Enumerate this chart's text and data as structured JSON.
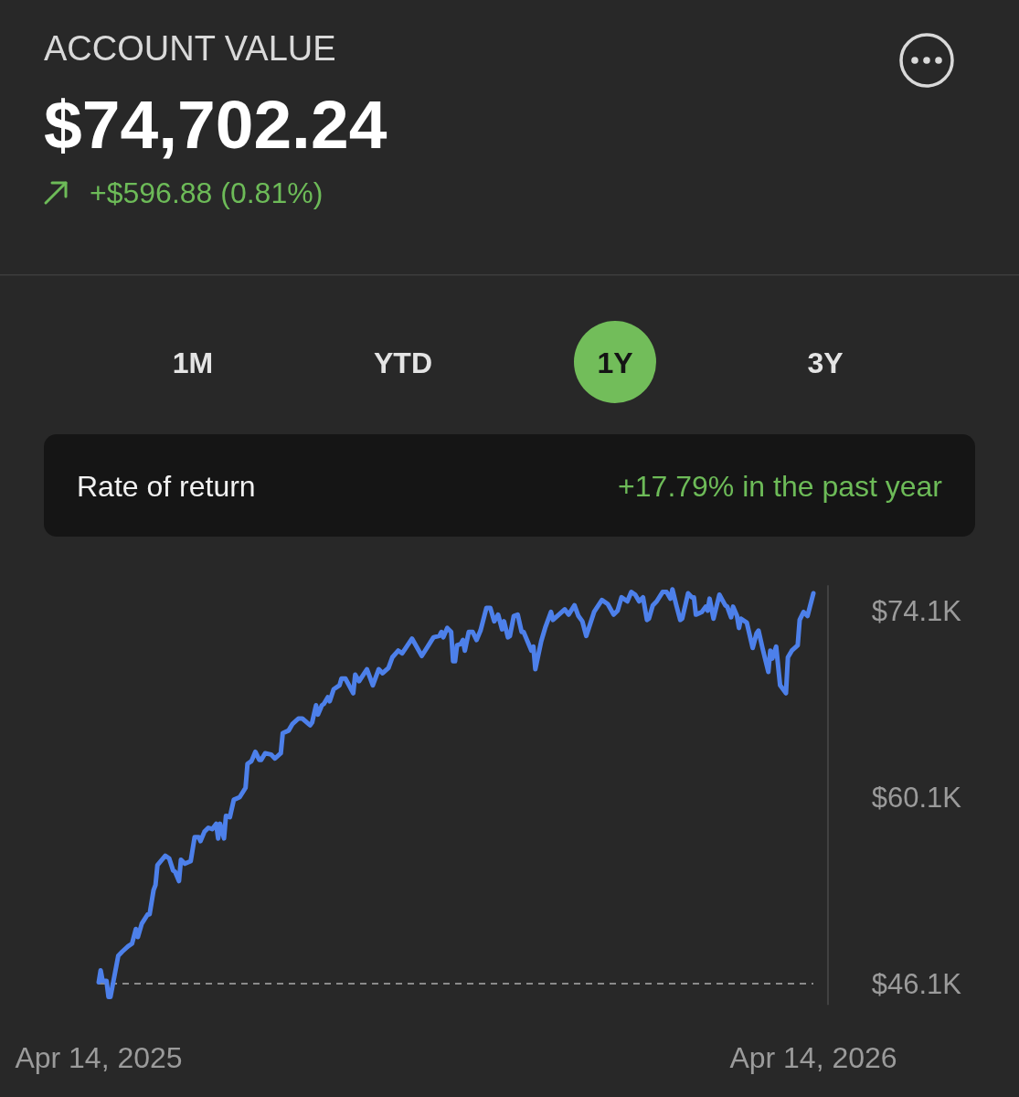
{
  "chart_data": {
    "type": "line",
    "title": "ACCOUNT VALUE",
    "subtitle": "$74,702.24",
    "annotations": [
      "+$596.88 (0.81%)",
      "1M",
      "YTD",
      "1Y",
      "3Y",
      "Rate of return",
      "+17.79% in the past year"
    ],
    "x": [
      "2025-04-14",
      "2025-04-15",
      "2025-04-16",
      "2025-04-18",
      "2025-04-19",
      "2025-04-20",
      "2025-04-24",
      "2025-04-26",
      "2025-04-29",
      "2025-05-01",
      "2025-05-03",
      "2025-05-04",
      "2025-05-06",
      "2025-05-09",
      "2025-05-10",
      "2025-05-12",
      "2025-05-13",
      "2025-05-14",
      "2025-05-18",
      "2025-05-20",
      "2025-05-22",
      "2025-05-23",
      "2025-05-25",
      "2025-05-26",
      "2025-05-28",
      "2025-05-31",
      "2025-06-02",
      "2025-06-04",
      "2025-06-05",
      "2025-06-07",
      "2025-06-09",
      "2025-06-11",
      "2025-06-13",
      "2025-06-14",
      "2025-06-15",
      "2025-06-17",
      "2025-06-18",
      "2025-06-20",
      "2025-06-22",
      "2025-06-25",
      "2025-06-28",
      "2025-06-29",
      "2025-07-01",
      "2025-07-03",
      "2025-07-05",
      "2025-07-06",
      "2025-07-08",
      "2025-07-11",
      "2025-07-13",
      "2025-07-16",
      "2025-07-17",
      "2025-07-20",
      "2025-07-22",
      "2025-07-25",
      "2025-07-27",
      "2025-07-31",
      "2025-08-01",
      "2025-08-03",
      "2025-08-04",
      "2025-08-06",
      "2025-08-07",
      "2025-08-09",
      "2025-08-10",
      "2025-08-12",
      "2025-08-15",
      "2025-08-16",
      "2025-08-18",
      "2025-08-22",
      "2025-08-23",
      "2025-08-25",
      "2025-08-29",
      "2025-09-01",
      "2025-09-04",
      "2025-09-06",
      "2025-09-09",
      "2025-09-11",
      "2025-09-14",
      "2025-09-16",
      "2025-09-21",
      "2025-09-26",
      "2025-09-29",
      "2025-10-02",
      "2025-10-05",
      "2025-10-06",
      "2025-10-07",
      "2025-10-09",
      "2025-10-11",
      "2025-10-12",
      "2025-10-13",
      "2025-10-14",
      "2025-10-16",
      "2025-10-17",
      "2025-10-18",
      "2025-10-20",
      "2025-10-22",
      "2025-10-24",
      "2025-10-26",
      "2025-10-29",
      "2025-10-31",
      "2025-11-02",
      "2025-11-04",
      "2025-11-06",
      "2025-11-07",
      "2025-11-09",
      "2025-11-10",
      "2025-11-12",
      "2025-11-14",
      "2025-11-16",
      "2025-11-17",
      "2025-11-21",
      "2025-11-22",
      "2025-11-23",
      "2025-11-26",
      "2025-11-28",
      "2025-12-01",
      "2025-12-02",
      "2025-12-05",
      "2025-12-08",
      "2025-12-10",
      "2025-12-13",
      "2025-12-15",
      "2025-12-17",
      "2025-12-19",
      "2025-12-23",
      "2025-12-27",
      "2025-12-30",
      "2026-01-02",
      "2026-01-04",
      "2026-01-06",
      "2026-01-09",
      "2026-01-11",
      "2026-01-13",
      "2026-01-15",
      "2026-01-17",
      "2026-01-19",
      "2026-01-20",
      "2026-01-22",
      "2026-01-24",
      "2026-01-27",
      "2026-01-29",
      "2026-01-31",
      "2026-02-01",
      "2026-02-03",
      "2026-02-05",
      "2026-02-06",
      "2026-02-09",
      "2026-02-11",
      "2026-02-12",
      "2026-02-13",
      "2026-02-16",
      "2026-02-18",
      "2026-02-19",
      "2026-02-20",
      "2026-02-22",
      "2026-02-25",
      "2026-02-28",
      "2026-03-01",
      "2026-03-03",
      "2026-03-04",
      "2026-03-06",
      "2026-03-07",
      "2026-03-08",
      "2026-03-11",
      "2026-03-14",
      "2026-03-16",
      "2026-03-17",
      "2026-03-19",
      "2026-03-22",
      "2026-03-23",
      "2026-03-24",
      "2026-03-26",
      "2026-03-28",
      "2026-03-31",
      "2026-04-01",
      "2026-04-03",
      "2026-04-06",
      "2026-04-07",
      "2026-04-09",
      "2026-04-11",
      "2026-04-14"
    ],
    "series": [
      {
        "color": "#4d80ea",
        "values": [
          46.2,
          47.1,
          46.3,
          46.3,
          45.1,
          45.1,
          48.2,
          48.5,
          48.9,
          49.1,
          50.2,
          49.6,
          50.6,
          51.3,
          51.3,
          53.1,
          53.5,
          55.0,
          55.7,
          55.5,
          54.6,
          54.5,
          53.8,
          55.4,
          55.1,
          55.3,
          57.1,
          57.1,
          56.8,
          57.5,
          57.8,
          57.7,
          58.1,
          57.0,
          58.1,
          57.0,
          58.7,
          58.6,
          59.9,
          60.1,
          60.8,
          62.6,
          62.8,
          63.5,
          62.9,
          62.9,
          63.4,
          63.3,
          63.0,
          63.4,
          64.9,
          65.1,
          65.6,
          66.0,
          66.0,
          65.5,
          65.7,
          67.0,
          66.3,
          67.0,
          67.1,
          67.6,
          67.3,
          68.2,
          68.5,
          69.0,
          69.0,
          67.9,
          69.3,
          68.8,
          69.7,
          68.5,
          69.7,
          69.4,
          69.8,
          70.6,
          71.1,
          70.9,
          72.0,
          70.7,
          71.4,
          72.1,
          72.2,
          72.5,
          72.1,
          72.8,
          72.5,
          70.3,
          70.3,
          71.5,
          71.6,
          71.9,
          71.1,
          72.5,
          72.5,
          71.9,
          72.6,
          74.3,
          74.3,
          73.3,
          73.8,
          72.7,
          73.3,
          72.1,
          72.2,
          73.7,
          73.8,
          72.5,
          72.5,
          71.1,
          71.4,
          69.7,
          71.8,
          72.8,
          74.0,
          73.4,
          73.8,
          74.2,
          73.8,
          74.5,
          73.7,
          73.3,
          72.2,
          74.0,
          74.9,
          74.6,
          73.8,
          74.1,
          75.1,
          74.8,
          75.5,
          75.3,
          74.8,
          75.1,
          73.4,
          73.5,
          74.5,
          74.8,
          75.5,
          75.5,
          75.0,
          75.7,
          74.5,
          73.4,
          73.5,
          75.4,
          75.1,
          75.1,
          73.8,
          74.0,
          74.4,
          74.1,
          75.0,
          73.5,
          75.3,
          74.5,
          74.4,
          73.6,
          74.4,
          73.7,
          72.8,
          73.5,
          73.2,
          71.3,
          72.4,
          72.6,
          71.3,
          69.5,
          71.1,
          70.5,
          71.4,
          68.5,
          67.9,
          70.6,
          71.1,
          71.5,
          73.4,
          74.0,
          73.7,
          75.4
        ]
      }
    ],
    "xlim": [
      "2025-04-14",
      "2026-04-14"
    ],
    "xticks": [
      {
        "value": "2025-04-14",
        "label": "Apr 14, 2025"
      },
      {
        "value": "2026-04-14",
        "label": "Apr 14, 2026"
      }
    ],
    "ylim": [
      44.5,
      76
    ],
    "yticks": [
      {
        "value": 46.1,
        "label": "$46.1K"
      },
      {
        "value": 60.1,
        "label": "$60.1K"
      },
      {
        "value": 74.1,
        "label": "$74.1K"
      }
    ],
    "ref_lines": [
      {
        "axis": "y",
        "value": 46.1,
        "color": "#8a8a8a",
        "line_style": "dashed"
      }
    ]
  }
}
